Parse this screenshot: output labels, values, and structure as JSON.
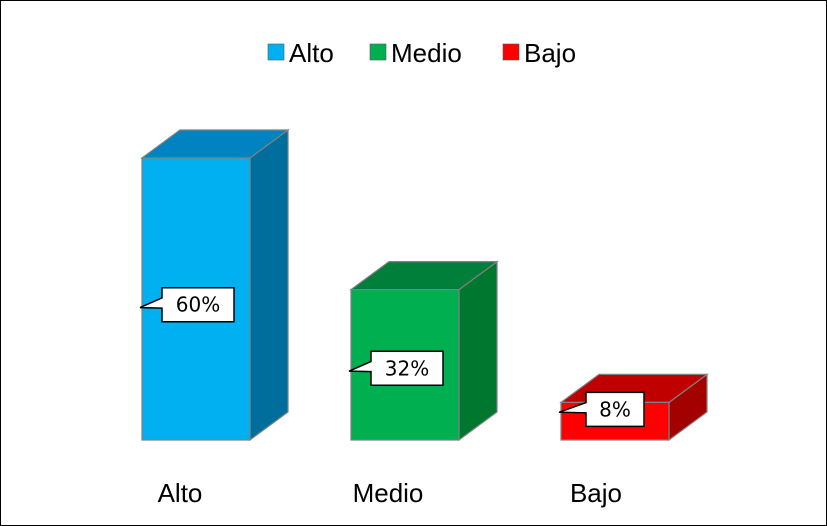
{
  "chart_data": {
    "type": "bar",
    "style": "3d",
    "categories": [
      "Alto",
      "Medio",
      "Bajo"
    ],
    "values": [
      60,
      32,
      8
    ],
    "data_labels": [
      "60%",
      "32%",
      "8%"
    ],
    "legend": {
      "position": "top",
      "entries": [
        "Alto",
        "Medio",
        "Bajo"
      ]
    },
    "colors": {
      "front": [
        "#00b0f0",
        "#00b050",
        "#ff0000"
      ],
      "top": [
        "#0083c0",
        "#007f3a",
        "#c00000"
      ],
      "side": [
        "#006e9c",
        "#00772f",
        "#a30000"
      ]
    },
    "ylim": [
      0,
      60
    ],
    "grid": false
  }
}
